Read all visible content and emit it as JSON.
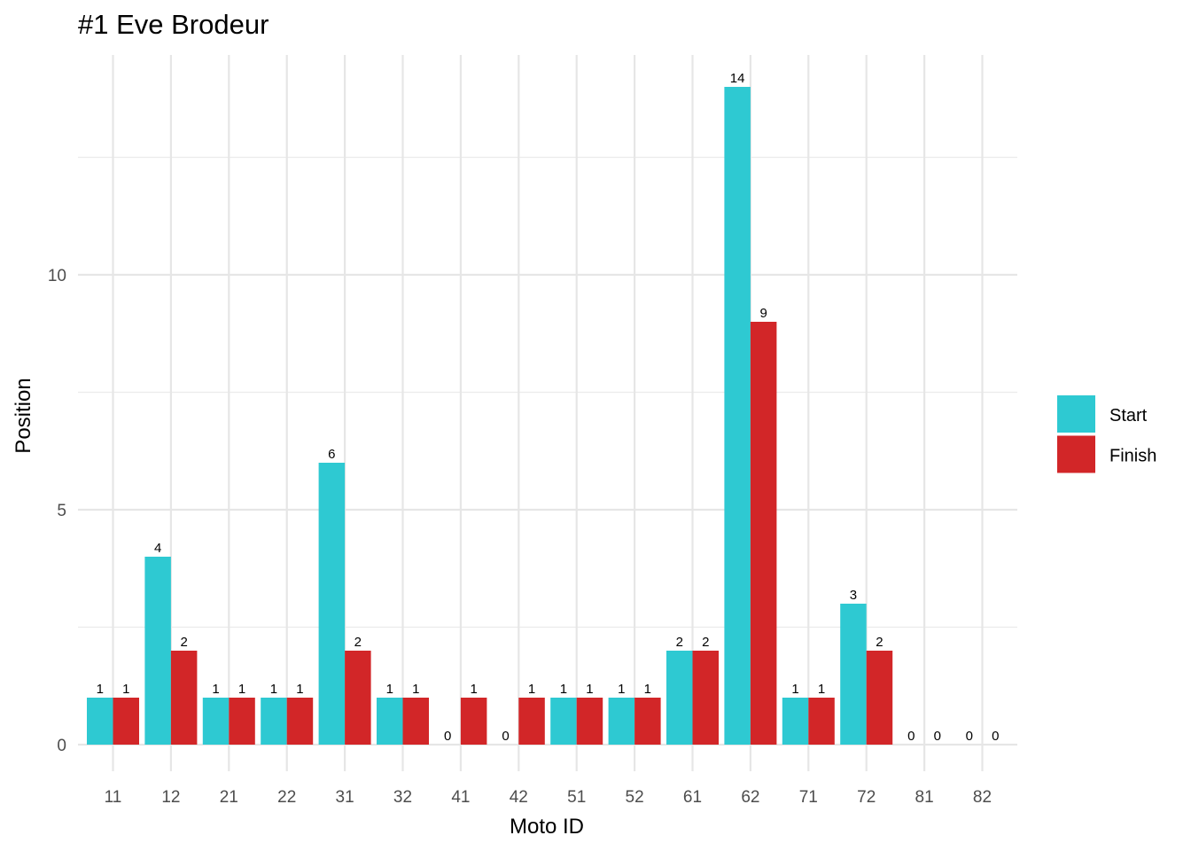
{
  "chart_data": {
    "type": "bar",
    "title": "#1 Eve Brodeur",
    "xlabel": "Moto ID",
    "ylabel": "Position",
    "categories": [
      "11",
      "12",
      "21",
      "22",
      "31",
      "32",
      "41",
      "42",
      "51",
      "52",
      "61",
      "62",
      "71",
      "72",
      "81",
      "82"
    ],
    "series": [
      {
        "name": "Start",
        "color": "#2ec9d2",
        "values": [
          1,
          4,
          1,
          1,
          6,
          1,
          0,
          0,
          1,
          1,
          2,
          14,
          1,
          3,
          0,
          0
        ]
      },
      {
        "name": "Finish",
        "color": "#d22628",
        "values": [
          1,
          2,
          1,
          1,
          2,
          1,
          1,
          1,
          1,
          1,
          2,
          9,
          1,
          2,
          0,
          0
        ]
      }
    ],
    "ylim": [
      0,
      14
    ],
    "yticks": [
      0,
      5,
      10
    ],
    "grid": true,
    "legend_position": "right",
    "data_labels": true
  }
}
